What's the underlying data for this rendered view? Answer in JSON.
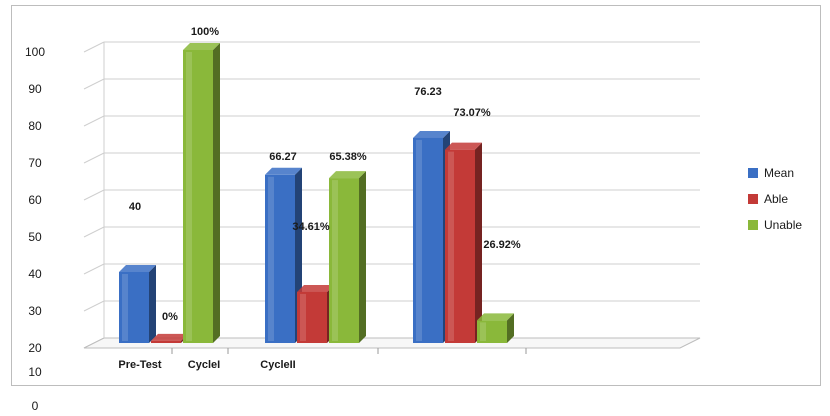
{
  "chart_data": {
    "type": "bar",
    "categories": [
      "Pre-Test",
      "CycleI",
      "CycleII"
    ],
    "series": [
      {
        "name": "Mean",
        "values": [
          40,
          66.27,
          76.23
        ]
      },
      {
        "name": "Able",
        "values": [
          0,
          34.61,
          73.07
        ]
      },
      {
        "name": "Unable",
        "values": [
          100,
          65.38,
          26.92
        ]
      }
    ],
    "data_labels": [
      [
        "40",
        "66.27",
        "76.23"
      ],
      [
        "0%",
        "34.61%",
        "73.07%"
      ],
      [
        "100%",
        "65.38%",
        "26.92%"
      ]
    ],
    "y_ticks": [
      "0",
      "10",
      "20",
      "30",
      "40",
      "50",
      "60",
      "70",
      "80",
      "90",
      "100"
    ],
    "ylim": [
      0,
      100
    ],
    "grid": true,
    "legend_position": "right",
    "colors": {
      "Mean": "#3a6fc4",
      "Able": "#c33a37",
      "Unable": "#8ab83a"
    },
    "style": "3d-columns"
  }
}
